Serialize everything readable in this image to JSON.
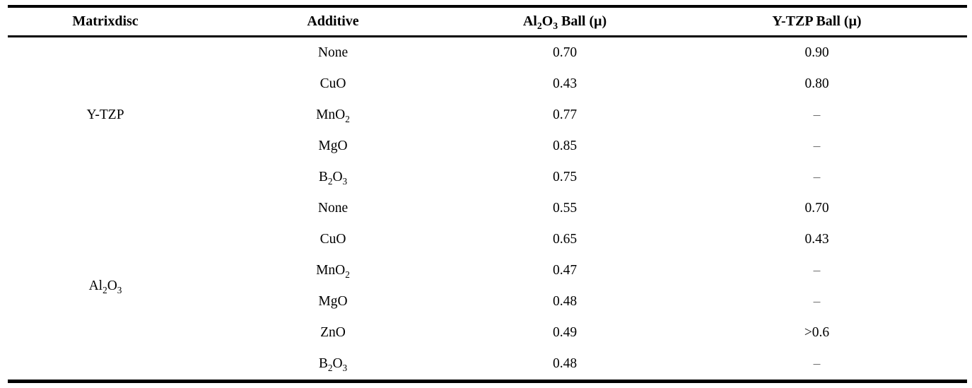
{
  "page": {
    "background": "#ffffff",
    "text_color": "#000000",
    "dash_color": "#6e6e6e",
    "rule_color": "#000000"
  },
  "table": {
    "columns": [
      "Matrixdisc",
      "Additive",
      "Al_2O_3 Ball (μ)",
      "Y-TZP Ball (μ)"
    ],
    "groups": [
      {
        "matrix": "Y-TZP",
        "rows": [
          {
            "additive": "None",
            "al2o3_ball": "0.70",
            "ytzp_ball": "0.90"
          },
          {
            "additive": "CuO",
            "al2o3_ball": "0.43",
            "ytzp_ball": "0.80"
          },
          {
            "additive": "MnO_2",
            "al2o3_ball": "0.77",
            "ytzp_ball": "–"
          },
          {
            "additive": "MgO",
            "al2o3_ball": "0.85",
            "ytzp_ball": "–"
          },
          {
            "additive": "B_2O_3",
            "al2o3_ball": "0.75",
            "ytzp_ball": "–"
          }
        ]
      },
      {
        "matrix": "Al_2O_3",
        "rows": [
          {
            "additive": "None",
            "al2o3_ball": "0.55",
            "ytzp_ball": "0.70"
          },
          {
            "additive": "CuO",
            "al2o3_ball": "0.65",
            "ytzp_ball": "0.43"
          },
          {
            "additive": "MnO_2",
            "al2o3_ball": "0.47",
            "ytzp_ball": "–"
          },
          {
            "additive": "MgO",
            "al2o3_ball": "0.48",
            "ytzp_ball": "–"
          },
          {
            "additive": "ZnO",
            "al2o3_ball": "0.49",
            "ytzp_ball": ">0.6"
          },
          {
            "additive": "B_2O_3",
            "al2o3_ball": "0.48",
            "ytzp_ball": "–"
          }
        ]
      }
    ]
  }
}
